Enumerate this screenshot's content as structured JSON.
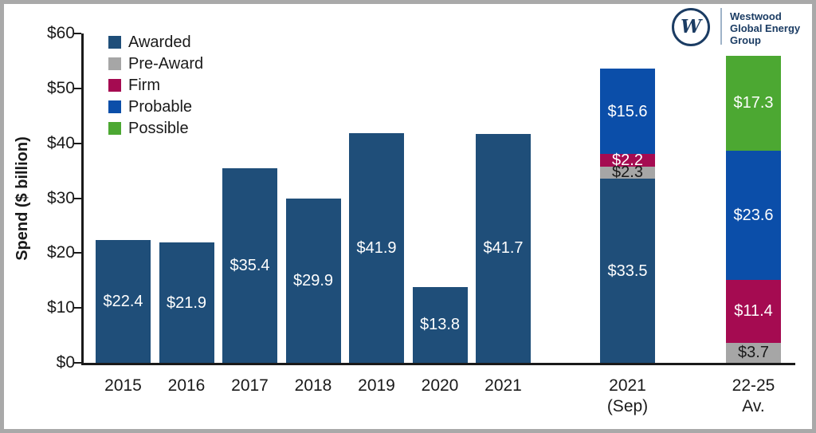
{
  "chart_data": {
    "type": "bar",
    "stacked": true,
    "title": "",
    "xlabel": "",
    "ylabel": "Spend ($ billion)",
    "ylim": [
      0,
      60
    ],
    "grid": false,
    "yticks": [
      {
        "label": "$0",
        "value": 0
      },
      {
        "label": "$10",
        "value": 10
      },
      {
        "label": "$20",
        "value": 20
      },
      {
        "label": "$30",
        "value": 30
      },
      {
        "label": "$40",
        "value": 40
      },
      {
        "label": "$50",
        "value": 50
      },
      {
        "label": "$60",
        "value": 60
      }
    ],
    "categories": [
      "2015",
      "2016",
      "2017",
      "2018",
      "2019",
      "2020",
      "2021",
      "2021 (Sep)",
      "22-25 Av."
    ],
    "tick_lines": [
      [
        "2015"
      ],
      [
        "2016"
      ],
      [
        "2017"
      ],
      [
        "2018"
      ],
      [
        "2019"
      ],
      [
        "2020"
      ],
      [
        "2021"
      ],
      [
        "2021",
        "(Sep)"
      ],
      [
        "22-25",
        "Av."
      ]
    ],
    "series": [
      {
        "name": "Awarded",
        "color": "#1F4E79",
        "label_color": "#FFFFFF",
        "values": [
          22.4,
          21.9,
          35.4,
          29.9,
          41.9,
          13.8,
          41.7,
          33.5,
          0
        ]
      },
      {
        "name": "Pre-Award",
        "color": "#A6A6A6",
        "label_color": "#1A1A1A",
        "values": [
          0,
          0,
          0,
          0,
          0,
          0,
          0,
          2.3,
          3.7
        ]
      },
      {
        "name": "Firm",
        "color": "#A50B51",
        "label_color": "#FFFFFF",
        "values": [
          0,
          0,
          0,
          0,
          0,
          0,
          0,
          2.2,
          11.4
        ]
      },
      {
        "name": "Probable",
        "color": "#0B4EA9",
        "label_color": "#FFFFFF",
        "values": [
          0,
          0,
          0,
          0,
          0,
          0,
          0,
          15.6,
          23.6
        ]
      },
      {
        "name": "Possible",
        "color": "#4CA832",
        "label_color": "#FFFFFF",
        "values": [
          0,
          0,
          0,
          0,
          0,
          0,
          0,
          0,
          17.3
        ]
      }
    ],
    "legend": {
      "position": "top-left",
      "items": [
        "Awarded",
        "Pre-Award",
        "Firm",
        "Probable",
        "Possible"
      ]
    },
    "value_prefix": "$"
  },
  "logo": {
    "mark": "W",
    "line1": "Westwood",
    "line2": "Global Energy",
    "line3": "Group",
    "color": "#1B3C63"
  }
}
